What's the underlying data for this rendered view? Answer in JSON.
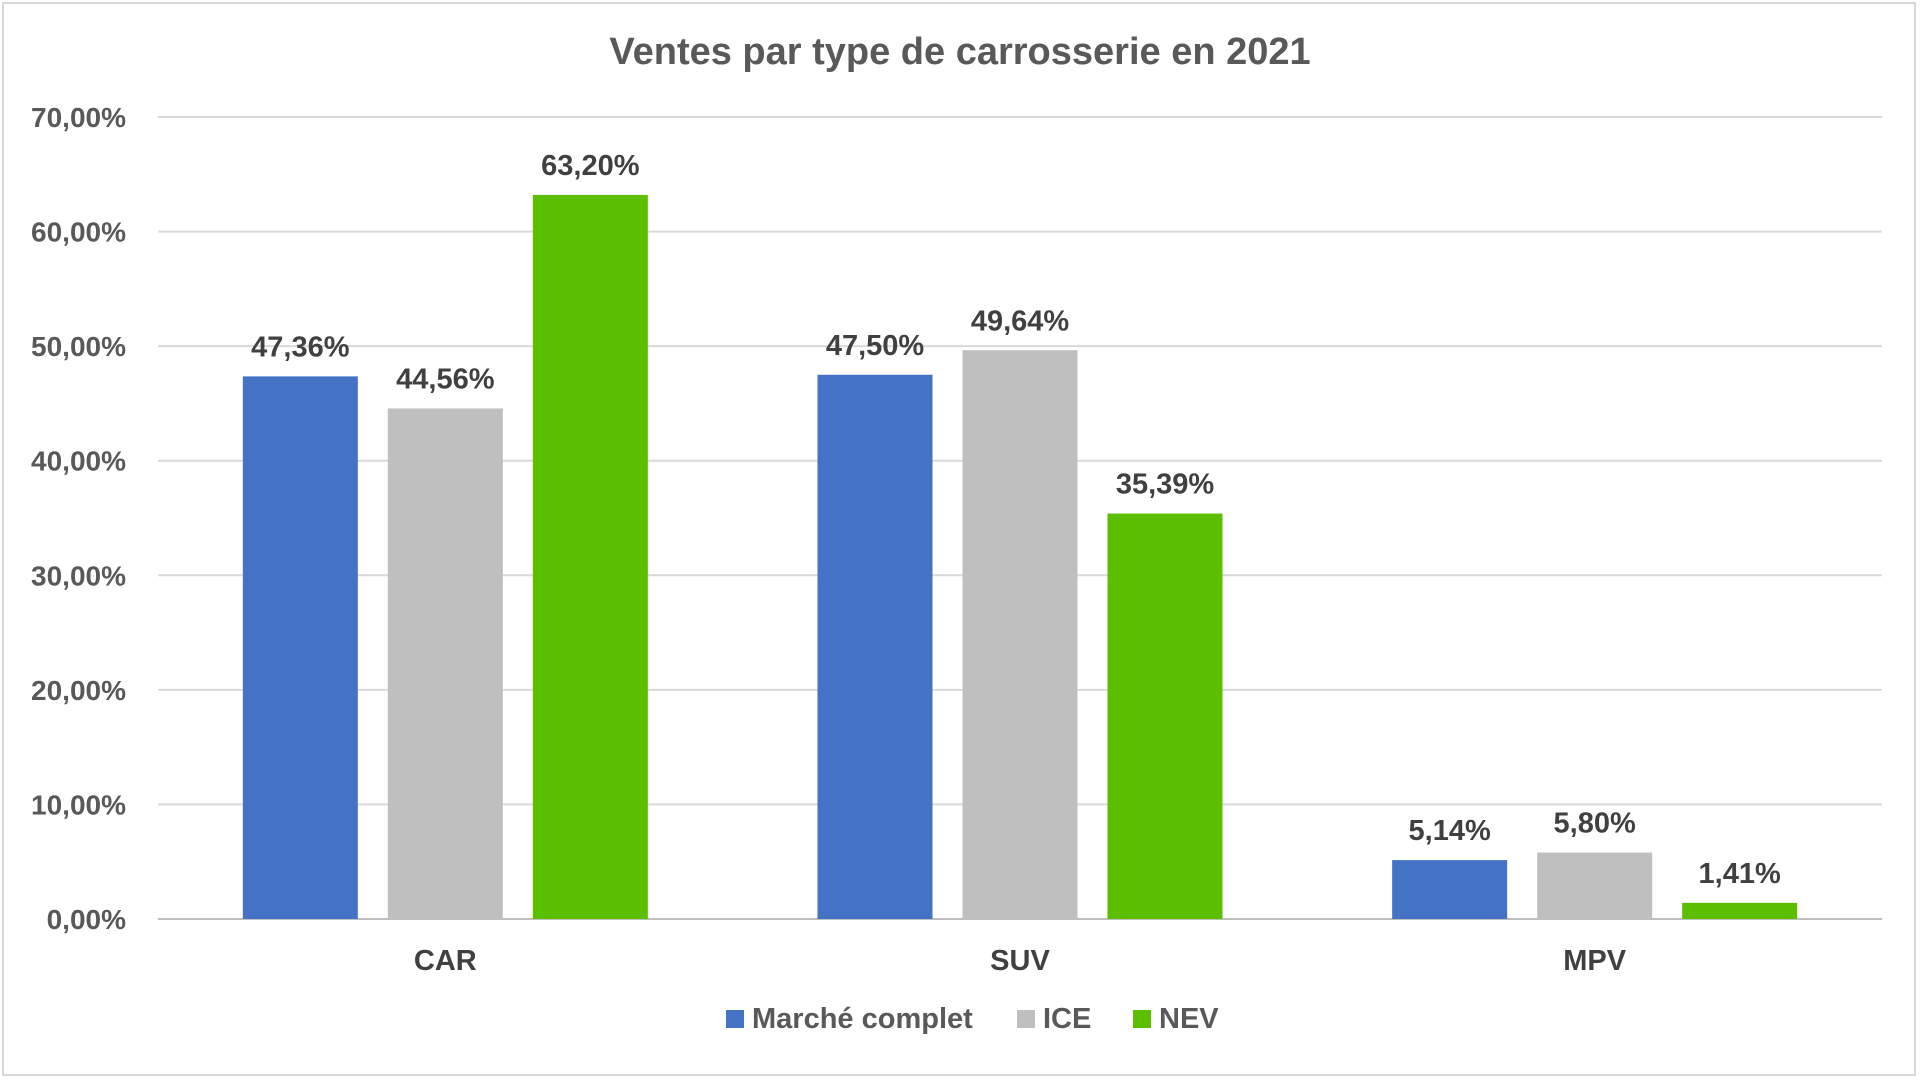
{
  "chart_data": {
    "type": "bar",
    "title": "Ventes par type de carrosserie en 2021",
    "categories": [
      "CAR",
      "SUV",
      "MPV"
    ],
    "series": [
      {
        "name": "Marché complet",
        "color": "#4472c4",
        "values": [
          47.36,
          47.5,
          5.14
        ],
        "labels": [
          "47,36%",
          "47,50%",
          "5,14%"
        ]
      },
      {
        "name": "ICE",
        "color": "#bfbfbf",
        "values": [
          44.56,
          49.64,
          5.8
        ],
        "labels": [
          "44,56%",
          "49,64%",
          "5,80%"
        ]
      },
      {
        "name": "NEV",
        "color": "#5bbf00",
        "values": [
          63.2,
          35.39,
          1.41
        ],
        "labels": [
          "63,20%",
          "35,39%",
          "1,41%"
        ]
      }
    ],
    "yticks": [
      "0,00%",
      "10,00%",
      "20,00%",
      "30,00%",
      "40,00%",
      "50,00%",
      "60,00%",
      "70,00%"
    ],
    "ylim": [
      0,
      70
    ],
    "grid": true,
    "legend_position": "bottom"
  }
}
